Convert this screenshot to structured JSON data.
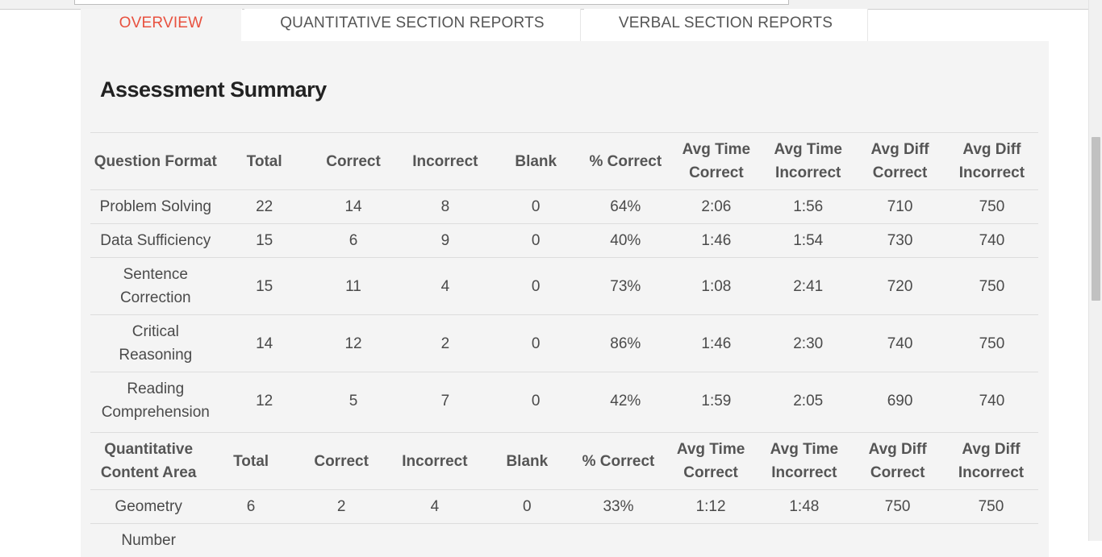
{
  "tabs": [
    {
      "label": "OVERVIEW",
      "active": true
    },
    {
      "label": "QUANTITATIVE SECTION REPORTS",
      "active": false
    },
    {
      "label": "VERBAL SECTION REPORTS",
      "active": false
    }
  ],
  "summary": {
    "title": "Assessment Summary",
    "format_table": {
      "headers": [
        "Question Format",
        "Total",
        "Correct",
        "Incorrect",
        "Blank",
        "% Correct",
        "Avg Time Correct",
        "Avg Time Incorrect",
        "Avg Diff Correct",
        "Avg Diff Incorrect"
      ],
      "rows": [
        [
          "Problem Solving",
          "22",
          "14",
          "8",
          "0",
          "64%",
          "2:06",
          "1:56",
          "710",
          "750"
        ],
        [
          "Data Sufficiency",
          "15",
          "6",
          "9",
          "0",
          "40%",
          "1:46",
          "1:54",
          "730",
          "740"
        ],
        [
          "Sentence Correction",
          "15",
          "11",
          "4",
          "0",
          "73%",
          "1:08",
          "2:41",
          "720",
          "750"
        ],
        [
          "Critical Reasoning",
          "14",
          "12",
          "2",
          "0",
          "86%",
          "1:46",
          "2:30",
          "740",
          "750"
        ],
        [
          "Reading Comprehension",
          "12",
          "5",
          "7",
          "0",
          "42%",
          "1:59",
          "2:05",
          "690",
          "740"
        ]
      ]
    },
    "quant_table": {
      "headers": [
        "Quantitative Content Area",
        "Total",
        "Correct",
        "Incorrect",
        "Blank",
        "% Correct",
        "Avg Time Correct",
        "Avg Time Incorrect",
        "Avg Diff Correct",
        "Avg Diff Incorrect"
      ],
      "rows": [
        [
          "Geometry",
          "6",
          "2",
          "4",
          "0",
          "33%",
          "1:12",
          "1:48",
          "750",
          "750"
        ],
        [
          "Number",
          "",
          "",
          "",
          "",
          "",
          "",
          "",
          "",
          ""
        ]
      ]
    }
  },
  "colors": {
    "active_tab": "#e8513f",
    "panel_bg": "#f4f4f4",
    "text": "#4a4a4a"
  }
}
